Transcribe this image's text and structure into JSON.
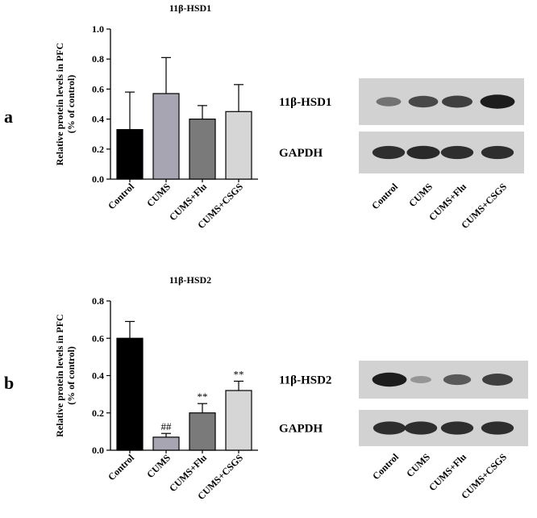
{
  "panels": [
    {
      "letter": "a",
      "chart_data": {
        "type": "bar",
        "title": "11β-HSD1",
        "ylabel": [
          "Relative protein levels in PFC",
          "(% of control)"
        ],
        "categories": [
          "Control",
          "CUMS",
          "CUMS+Flu",
          "CUMS+CSGS"
        ],
        "values": [
          0.33,
          0.57,
          0.4,
          0.45
        ],
        "errors": [
          0.25,
          0.24,
          0.09,
          0.18
        ],
        "annotations": [
          "",
          "",
          "",
          ""
        ],
        "colors": [
          "#000000",
          "#a7a5b2",
          "#7a7a7a",
          "#d6d6d6"
        ],
        "ylim": [
          0,
          1.0
        ],
        "yticks": [
          "0.0",
          "0.2",
          "0.4",
          "0.6",
          "0.8",
          "1.0"
        ]
      },
      "blot": {
        "rows": [
          "11β-HSD1",
          "GAPDH"
        ],
        "lanes": [
          "Control",
          "CUMS",
          "CUMS+Flu",
          "CUMS+CSGS"
        ],
        "band_intensity": [
          [
            0.45,
            0.7,
            0.75,
            0.95
          ],
          [
            0.85,
            0.88,
            0.85,
            0.85
          ]
        ]
      }
    },
    {
      "letter": "b",
      "chart_data": {
        "type": "bar",
        "title": "11β-HSD2",
        "ylabel": [
          "Relative protein levels in PFC",
          "(% of control)"
        ],
        "categories": [
          "Control",
          "CUMS",
          "CUMS+Flu",
          "CUMS+CSGS"
        ],
        "values": [
          0.6,
          0.07,
          0.2,
          0.32
        ],
        "errors": [
          0.09,
          0.02,
          0.05,
          0.05
        ],
        "annotations": [
          "",
          "##",
          "**",
          "**"
        ],
        "colors": [
          "#000000",
          "#a7a5b2",
          "#7a7a7a",
          "#d6d6d6"
        ],
        "ylim": [
          0,
          0.8
        ],
        "yticks": [
          "0.0",
          "0.2",
          "0.4",
          "0.6",
          "0.8"
        ]
      },
      "blot": {
        "rows": [
          "11β-HSD2",
          "GAPDH"
        ],
        "lanes": [
          "Control",
          "CUMS",
          "CUMS+Flu",
          "CUMS+CSGS"
        ],
        "band_intensity": [
          [
            0.95,
            0.25,
            0.6,
            0.75
          ],
          [
            0.85,
            0.85,
            0.85,
            0.85
          ]
        ]
      }
    }
  ]
}
